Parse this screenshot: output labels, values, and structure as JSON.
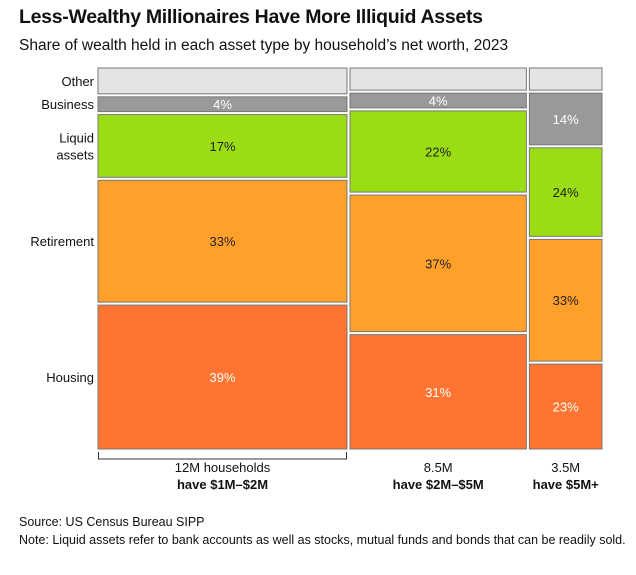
{
  "title": "Less-Wealthy Millionaires Have More Illiquid Assets",
  "subtitle": "Share of wealth held in each asset type by household’s net worth, 2023",
  "chart_data": {
    "type": "marimekko",
    "ylim": [
      0,
      100
    ],
    "row_labels": [
      "Other",
      "Business",
      "Liquid assets",
      "Retirement",
      "Housing"
    ],
    "colors": {
      "Other": "#e4e4e4",
      "Business": "#999999",
      "Liquid assets": "#9bdd14",
      "Retirement": "#ffa02a",
      "Housing": "#ff7430"
    },
    "columns": [
      {
        "label_line1": "12M households",
        "label_line2": "have $1M–$2M",
        "households_millions": 12,
        "values": {
          "Other": 7,
          "Business": 4,
          "Liquid assets": 17,
          "Retirement": 33,
          "Housing": 39
        },
        "labels": {
          "Business": "4%",
          "Liquid assets": "17%",
          "Retirement": "33%",
          "Housing": "39%"
        }
      },
      {
        "label_line1": "8.5M",
        "label_line2": "have $2M–$5M",
        "households_millions": 8.5,
        "values": {
          "Other": 6,
          "Business": 4,
          "Liquid assets": 22,
          "Retirement": 37,
          "Housing": 31
        },
        "labels": {
          "Business": "4%",
          "Liquid assets": "22%",
          "Retirement": "37%",
          "Housing": "31%"
        }
      },
      {
        "label_line1": "3.5M",
        "label_line2": "have $5M+",
        "households_millions": 3.5,
        "values": {
          "Other": 6,
          "Business": 14,
          "Liquid assets": 24,
          "Retirement": 33,
          "Housing": 23
        },
        "labels": {
          "Business": "14%",
          "Liquid assets": "24%",
          "Retirement": "33%",
          "Housing": "23%"
        }
      }
    ]
  },
  "footer": {
    "source": "Source: US Census Bureau SIPP",
    "note": "Note: Liquid assets refer to bank accounts as well as stocks, mutual funds and bonds that can be readily sold."
  }
}
